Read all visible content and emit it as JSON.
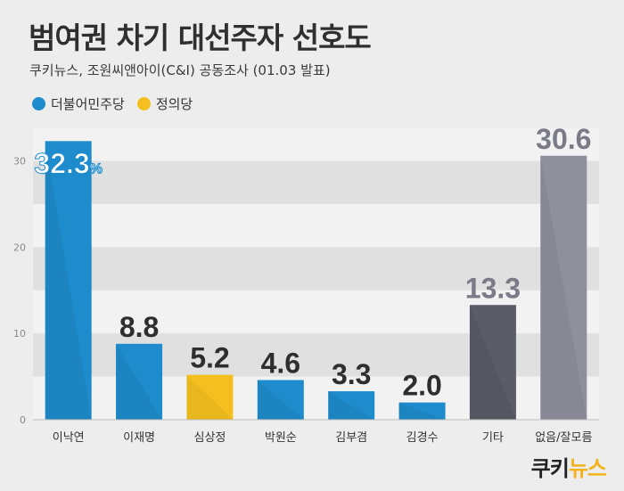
{
  "header": {
    "title": "범여권 차기 대선주자 선호도",
    "subtitle": "쿠키뉴스, 조원씨앤아이(C&I) 공동조사 (01.03 발표)"
  },
  "legend": [
    {
      "label": "더불어민주당",
      "color": "#1e8ccc"
    },
    {
      "label": "정의당",
      "color": "#f5c01f"
    }
  ],
  "logo": {
    "part1": "쿠키",
    "part2": "뉴스"
  },
  "chart_data": {
    "type": "bar",
    "title": "범여권 차기 대선주자 선호도",
    "categories": [
      "이낙연",
      "이재명",
      "심상정",
      "박원순",
      "김부겸",
      "김경수",
      "기타",
      "없음/잘모름"
    ],
    "values": [
      32.3,
      8.8,
      5.2,
      4.6,
      3.3,
      2.0,
      13.3,
      30.6
    ],
    "value_labels": [
      "32.3%",
      "8.8",
      "5.2",
      "4.6",
      "3.3",
      "2.0",
      "13.3",
      "30.6"
    ],
    "bar_colors": [
      "#1e8ccc",
      "#1e8ccc",
      "#f5c01f",
      "#1e8ccc",
      "#1e8ccc",
      "#1e8ccc",
      "#5a5c66",
      "#8f909c"
    ],
    "yticks": [
      0,
      10,
      20,
      30
    ],
    "ylim": [
      0,
      32.3
    ],
    "grid": true
  }
}
